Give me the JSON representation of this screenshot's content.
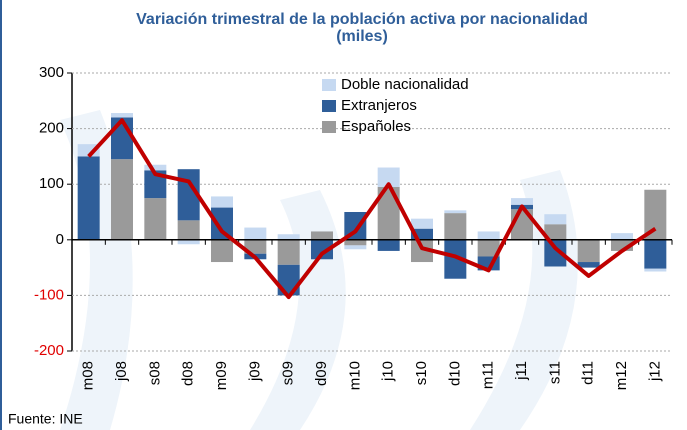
{
  "chart_data": {
    "type": "stacked-bar-line",
    "title": "Variación trimestral de la población activa por nacionalidad",
    "subtitle": "(miles)",
    "source": "Fuente: INE",
    "categories": [
      "m08",
      "j08",
      "s08",
      "d08",
      "m09",
      "j09",
      "s09",
      "d09",
      "m10",
      "j10",
      "s10",
      "d10",
      "m11",
      "j11",
      "s11",
      "d11",
      "m12",
      "j12"
    ],
    "series": [
      {
        "name": "Españoles",
        "color": "#9a9a9a",
        "values": [
          0,
          145,
          75,
          35,
          -40,
          -25,
          -45,
          15,
          -10,
          95,
          -40,
          48,
          -30,
          55,
          28,
          -40,
          -20,
          90
        ]
      },
      {
        "name": "Extranjeros",
        "color": "#2f5e99",
        "values": [
          150,
          75,
          50,
          92,
          58,
          -10,
          -55,
          -35,
          50,
          -20,
          20,
          -70,
          -25,
          8,
          -48,
          -10,
          0,
          -52
        ]
      },
      {
        "name": "Doble nacionalidad",
        "color": "#c6d9f1",
        "values": [
          22,
          8,
          10,
          -8,
          20,
          22,
          10,
          0,
          -7,
          35,
          18,
          5,
          15,
          12,
          18,
          0,
          12,
          -5
        ]
      }
    ],
    "line": {
      "color": "#c00000",
      "values": [
        150,
        215,
        118,
        105,
        15,
        -32,
        -103,
        -25,
        15,
        100,
        -15,
        -30,
        -55,
        60,
        -15,
        -65,
        -20,
        20
      ]
    },
    "ylim": [
      -200,
      300
    ],
    "yticks": [
      300,
      200,
      100,
      0,
      -100,
      -200
    ],
    "negative_tick_color": "#e00000",
    "grid": true,
    "legend": "top"
  }
}
